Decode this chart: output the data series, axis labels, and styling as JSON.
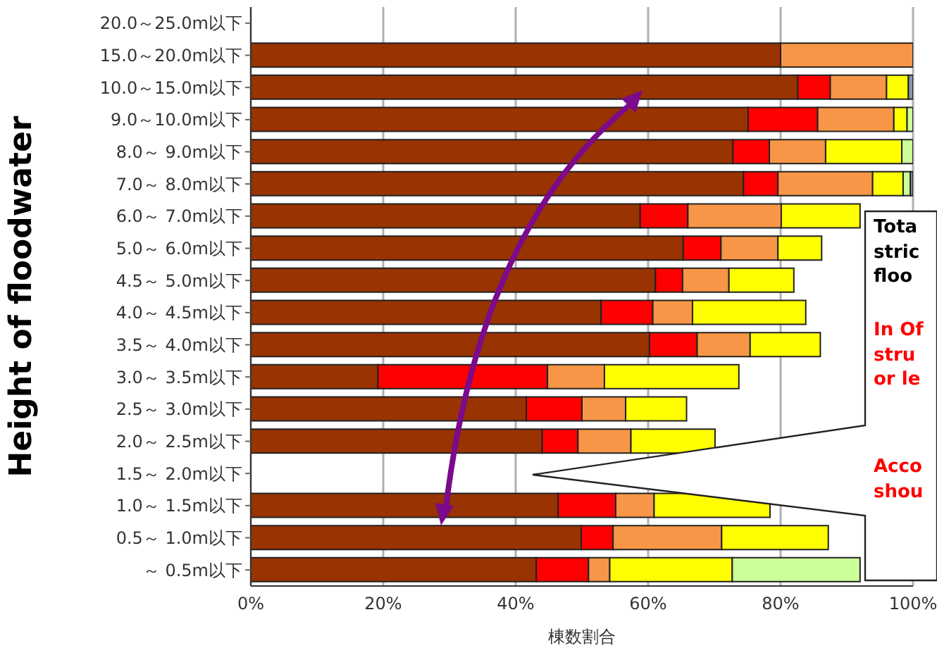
{
  "chart_data": {
    "type": "bar",
    "orientation": "horizontal",
    "stacked": true,
    "xlabel": "棟数割合",
    "ylabel": "Height of floodwater",
    "categories": [
      "20.0～25.0m以下",
      "15.0～20.0m以下",
      "10.0～15.0m以下",
      "9.0～10.0m以下",
      "8.0～ 9.0m以下",
      "7.0～ 8.0m以下",
      "6.0～ 7.0m以下",
      "5.0～ 6.0m以下",
      "4.5～ 5.0m以下",
      "4.0～ 4.5m以下",
      "3.5～ 4.0m以下",
      "3.0～ 3.5m以下",
      "2.5～ 3.0m以下",
      "2.0～ 2.5m以下",
      "1.5～ 2.0m以下",
      "1.0～ 1.5m以下",
      "0.5～ 1.0m以下",
      "～ 0.5m以下"
    ],
    "series": [
      {
        "color": "#993300",
        "values": [
          null,
          80,
          82.6,
          75.1,
          72.8,
          74.4,
          58.8,
          65.3,
          61.1,
          52.9,
          60.2,
          19.2,
          41.6,
          44,
          null,
          46.4,
          49.9,
          43.1
        ]
      },
      {
        "color": "#ff0000",
        "values": [
          null,
          0,
          4.9,
          10.5,
          5.5,
          5.2,
          7.2,
          5.7,
          4.1,
          7.8,
          7.2,
          25.6,
          8.4,
          5.4,
          null,
          8.7,
          4.8,
          7.9
        ]
      },
      {
        "color": "#f79646",
        "values": [
          null,
          20,
          8.5,
          11.5,
          8.5,
          14.3,
          14.1,
          8.6,
          7,
          6,
          8,
          8.6,
          6.6,
          8,
          null,
          5.8,
          16.4,
          3.2
        ]
      },
      {
        "color": "#ffff00",
        "values": [
          null,
          0,
          3.3,
          2,
          11.5,
          4.6,
          11.9,
          6.6,
          9.8,
          17.1,
          10.6,
          20.3,
          9.2,
          12.7,
          null,
          17.5,
          16.1,
          18.5
        ]
      },
      {
        "color": "#ccff99",
        "values": [
          null,
          0,
          0,
          0.9,
          1.7,
          1.1,
          null,
          null,
          null,
          null,
          null,
          null,
          null,
          null,
          null,
          null,
          null,
          19.3
        ]
      },
      {
        "color": "#8c9aa8",
        "values": [
          null,
          0,
          0.7,
          0,
          0,
          0.4,
          null,
          null,
          null,
          null,
          null,
          null,
          null,
          null,
          null,
          null,
          null,
          null
        ]
      }
    ],
    "xlim": [
      0,
      100
    ],
    "xticks": [
      {
        "value": 0,
        "label": "0%"
      },
      {
        "value": 20,
        "label": "20%"
      },
      {
        "value": 40,
        "label": "40%"
      },
      {
        "value": 60,
        "label": "60%"
      },
      {
        "value": 80,
        "label": "80%"
      },
      {
        "value": 100,
        "label": "100%"
      }
    ],
    "grid": "x",
    "legend": false,
    "annotations": [
      "Tota",
      "stric",
      "floo",
      "In Of",
      "stru",
      "or le",
      "Acco",
      "shou"
    ]
  }
}
